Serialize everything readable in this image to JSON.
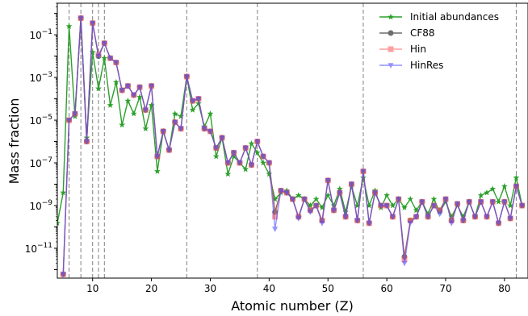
{
  "chart_data": {
    "type": "line",
    "xlabel": "Atomic number (Z)",
    "ylabel": "Mass fraction",
    "xlim": [
      4,
      84
    ],
    "ylim": [
      4e-13,
      3
    ],
    "yscale": "log",
    "x_ticks": [
      10,
      20,
      30,
      40,
      50,
      60,
      70,
      80
    ],
    "y_ticks": [
      {
        "value": 1e-11,
        "mantissa": "10",
        "exp": "−11"
      },
      {
        "value": 1e-09,
        "mantissa": "10",
        "exp": "−9"
      },
      {
        "value": 1e-07,
        "mantissa": "10",
        "exp": "−7"
      },
      {
        "value": 1e-05,
        "mantissa": "10",
        "exp": "−5"
      },
      {
        "value": 0.001,
        "mantissa": "10",
        "exp": "−3"
      },
      {
        "value": 0.1,
        "mantissa": "10",
        "exp": "−1"
      }
    ],
    "vlines_x": [
      6,
      8,
      10,
      11,
      12,
      26,
      38,
      56,
      82
    ],
    "grid": false,
    "legend_position": "top-right",
    "x": [
      4,
      5,
      6,
      7,
      8,
      9,
      10,
      11,
      12,
      13,
      14,
      15,
      16,
      17,
      18,
      19,
      20,
      21,
      22,
      23,
      24,
      25,
      26,
      27,
      28,
      29,
      30,
      31,
      32,
      33,
      34,
      35,
      36,
      37,
      38,
      39,
      40,
      41,
      42,
      43,
      44,
      45,
      46,
      47,
      48,
      49,
      50,
      51,
      52,
      53,
      54,
      55,
      56,
      57,
      58,
      59,
      60,
      61,
      62,
      63,
      64,
      65,
      66,
      67,
      68,
      69,
      70,
      71,
      72,
      73,
      74,
      75,
      76,
      77,
      78,
      79,
      80,
      81,
      82,
      83
    ],
    "series": [
      {
        "name": "Initial abundances",
        "color": "#2ca02c",
        "marker": "star",
        "values": [
          1.5e-10,
          4e-09,
          0.25,
          1.5e-05,
          0.6,
          1.5e-06,
          0.015,
          0.0003,
          0.008,
          5e-05,
          0.0006,
          6e-06,
          8e-05,
          2e-05,
          0.00012,
          4e-06,
          5e-05,
          4e-08,
          3e-06,
          4e-07,
          2e-05,
          1.5e-05,
          0.0011,
          3e-05,
          6e-05,
          5e-06,
          2e-05,
          2e-07,
          1.5e-06,
          3e-08,
          2e-07,
          1e-07,
          5e-08,
          8e-07,
          3e-07,
          1e-07,
          3e-08,
          2e-09,
          4e-09,
          5e-09,
          2e-09,
          3e-09,
          2e-09,
          1e-09,
          2e-09,
          8e-10,
          3e-09,
          1e-09,
          6e-09,
          5e-10,
          8e-09,
          1e-09,
          2e-08,
          1e-09,
          5e-09,
          8e-10,
          3e-09,
          1e-09,
          2e-09,
          8e-10,
          2e-09,
          6e-10,
          1.5e-09,
          4e-10,
          2e-09,
          5e-10,
          1.5e-09,
          3e-10,
          1e-09,
          3e-10,
          1.5e-09,
          3e-10,
          3e-09,
          4e-09,
          6e-09,
          1.5e-09,
          8e-09,
          1e-09,
          2e-08,
          1e-09
        ]
      },
      {
        "name": "CF88",
        "color": "#555555",
        "marker": "circle",
        "values": [
          null,
          6e-13,
          1e-05,
          2e-05,
          0.6,
          1e-06,
          0.35,
          0.01,
          0.04,
          0.008,
          0.005,
          0.00025,
          0.0004,
          0.00015,
          0.00035,
          3e-05,
          0.0004,
          2e-07,
          3e-06,
          4e-07,
          8e-06,
          4e-06,
          0.0011,
          8e-05,
          0.0001,
          4e-06,
          3e-06,
          5e-07,
          1.5e-06,
          1e-07,
          3e-07,
          1e-07,
          5e-07,
          8e-08,
          1e-06,
          2e-07,
          1e-07,
          5e-10,
          5e-09,
          4e-09,
          2e-09,
          3e-10,
          2e-09,
          6e-10,
          1e-09,
          2e-10,
          1.5e-08,
          6e-10,
          4e-09,
          3e-10,
          1e-08,
          2e-10,
          4e-08,
          1.5e-10,
          4e-09,
          1e-09,
          1e-09,
          3e-10,
          2e-09,
          4e-12,
          2e-10,
          3e-10,
          1.5e-09,
          3e-10,
          1e-09,
          6e-10,
          2e-09,
          2e-10,
          1.2e-09,
          2e-10,
          1.5e-09,
          3e-10,
          1.5e-09,
          3e-10,
          1.5e-09,
          1.5e-10,
          1.5e-09,
          2.5e-10,
          8e-09,
          1e-09
        ]
      },
      {
        "name": "Hin",
        "color": "#ff6060",
        "marker": "square",
        "values": [
          null,
          6e-13,
          1e-05,
          2e-05,
          0.6,
          1e-06,
          0.35,
          0.012,
          0.04,
          0.008,
          0.005,
          0.00025,
          0.0004,
          0.00015,
          0.00035,
          3e-05,
          0.0004,
          2e-07,
          3e-06,
          4e-07,
          8e-06,
          4e-06,
          0.0011,
          8e-05,
          0.0001,
          4e-06,
          3e-06,
          5e-07,
          1.5e-06,
          1e-07,
          3e-07,
          1e-07,
          5e-07,
          8e-08,
          1e-06,
          2e-07,
          1e-07,
          3e-10,
          5e-09,
          4e-09,
          2e-09,
          3e-10,
          2e-09,
          6e-10,
          1e-09,
          2e-10,
          1.5e-08,
          6e-10,
          4e-09,
          3e-10,
          1e-08,
          2e-10,
          4e-08,
          1.5e-10,
          4e-09,
          1e-09,
          1e-09,
          3e-10,
          2e-09,
          3e-12,
          2e-10,
          3e-10,
          1.5e-09,
          3e-10,
          1e-09,
          6e-10,
          2e-09,
          2e-10,
          1.2e-09,
          2e-10,
          1.5e-09,
          3e-10,
          1.5e-09,
          3e-10,
          1.5e-09,
          1.5e-10,
          1.5e-09,
          2.5e-10,
          8e-09,
          1e-09
        ]
      },
      {
        "name": "HinRes",
        "color": "#4b4bff",
        "marker": "triangle-down",
        "values": [
          null,
          6e-13,
          1e-05,
          2e-05,
          0.6,
          1e-06,
          0.35,
          0.01,
          0.04,
          0.008,
          0.005,
          0.00025,
          0.0004,
          0.00015,
          0.00035,
          3e-05,
          0.0004,
          2e-07,
          3e-06,
          4e-07,
          8e-06,
          4e-06,
          0.0011,
          8e-05,
          0.0001,
          4e-06,
          3e-06,
          5e-07,
          1.5e-06,
          1e-07,
          3e-07,
          1e-07,
          5e-07,
          8e-08,
          1e-06,
          2e-07,
          1e-07,
          8e-11,
          5e-09,
          4e-09,
          2e-09,
          2.5e-10,
          2e-09,
          5e-10,
          1e-09,
          1.5e-10,
          1.5e-08,
          6e-10,
          4e-09,
          3e-10,
          1e-08,
          2e-10,
          4e-08,
          1.5e-10,
          4e-09,
          1e-09,
          1e-09,
          3e-10,
          2e-09,
          2e-12,
          1.5e-10,
          3e-10,
          1.5e-09,
          3e-10,
          1e-09,
          4e-10,
          2e-09,
          1.5e-10,
          1.2e-09,
          2e-10,
          1.5e-09,
          3e-10,
          1.5e-09,
          3e-10,
          1.5e-09,
          1.5e-10,
          1.5e-09,
          2.5e-10,
          8e-09,
          1e-09
        ]
      }
    ]
  }
}
